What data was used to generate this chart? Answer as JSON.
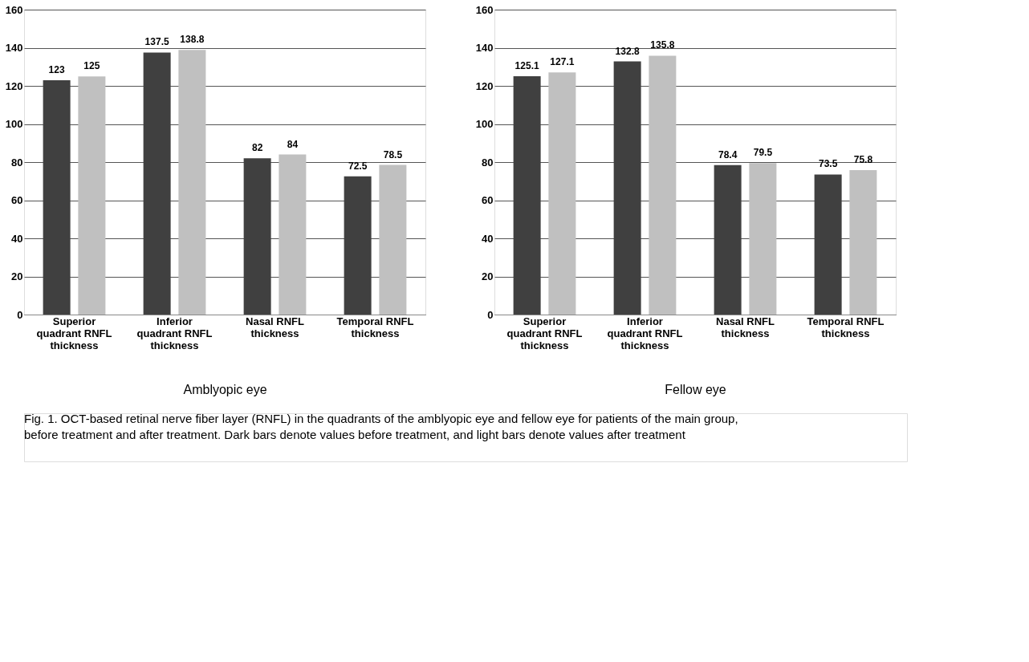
{
  "chart_data": [
    {
      "type": "bar",
      "xlabel": "Amblyopic eye",
      "categories": [
        "Superior quadrant RNFL thickness",
        "Inferior quadrant RNFL thickness",
        "Nasal RNFL thickness",
        "Temporal RNFL thickness"
      ],
      "series": [
        {
          "color": "#404040",
          "values": [
            123,
            137.5,
            82,
            72.5
          ]
        },
        {
          "color": "#c0c0c0",
          "values": [
            125,
            138.8,
            84,
            78.5
          ]
        }
      ],
      "ylim": [
        0,
        160
      ],
      "yticks": [
        0,
        20,
        40,
        60,
        80,
        100,
        120,
        140,
        160
      ],
      "grid": "y",
      "data_labels": true,
      "annotations": [
        "Fig. 1. OCT-based retinal nerve fiber layer (RNFL) in the quadrants of the amblyopic eye and fellow eye for patients of the main group, before treatment and after treatment. Dark bars denote values before treatment, and light bars denote values after treatment"
      ]
    },
    {
      "type": "bar",
      "xlabel": "Fellow eye",
      "categories": [
        "Superior quadrant RNFL thickness",
        "Inferior quadrant RNFL thickness",
        "Nasal RNFL thickness",
        "Temporal RNFL thickness"
      ],
      "series": [
        {
          "color": "#404040",
          "values": [
            125.1,
            132.8,
            78.4,
            73.5
          ]
        },
        {
          "color": "#c0c0c0",
          "values": [
            127.1,
            135.8,
            79.5,
            75.8
          ]
        }
      ],
      "ylim": [
        0,
        160
      ],
      "yticks": [
        0,
        20,
        40,
        60,
        80,
        100,
        120,
        140,
        160
      ],
      "grid": "y",
      "data_labels": true
    }
  ]
}
